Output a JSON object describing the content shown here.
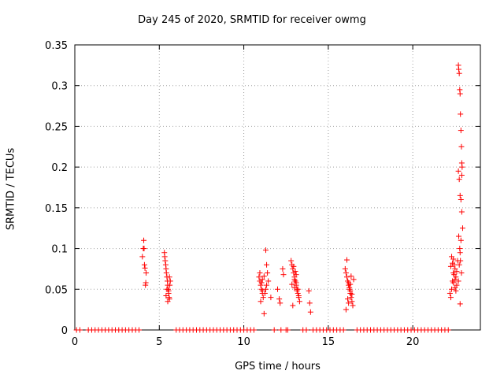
{
  "chart_data": {
    "type": "scatter",
    "title": "Day 245 of 2020, SRMTID for receiver owmg",
    "xlabel": "GPS time / hours",
    "ylabel": "SRMTID / TECUs",
    "xlim": [
      0,
      24
    ],
    "ylim": [
      0,
      0.35
    ],
    "xticks": [
      0,
      5,
      10,
      15,
      20
    ],
    "yticks": [
      0,
      0.05,
      0.1,
      0.15,
      0.2,
      0.25,
      0.3,
      0.35
    ],
    "grid": true,
    "marker": "+",
    "color": "#ff0000",
    "series": [
      {
        "name": "SRMTID",
        "x": [
          0.1,
          0.3,
          0.8,
          1.0,
          1.2,
          1.4,
          1.6,
          1.8,
          2.0,
          2.2,
          2.4,
          2.6,
          2.8,
          3.0,
          3.2,
          3.4,
          3.6,
          3.8,
          4.0,
          4.05,
          4.08,
          4.1,
          4.12,
          4.15,
          4.18,
          4.2,
          4.22,
          5.3,
          5.32,
          5.35,
          5.38,
          5.4,
          5.42,
          5.45,
          5.48,
          5.5,
          5.52,
          5.55,
          5.58,
          5.6,
          5.62,
          5.65,
          5.5,
          5.45,
          5.4,
          5.55,
          5.6,
          6.0,
          6.2,
          6.4,
          6.6,
          6.8,
          7.0,
          7.2,
          7.4,
          7.6,
          7.8,
          8.0,
          8.2,
          8.4,
          8.6,
          8.8,
          9.0,
          9.2,
          9.4,
          9.6,
          9.8,
          10.0,
          10.2,
          10.4,
          10.6,
          10.9,
          10.95,
          11.0,
          11.05,
          11.1,
          11.15,
          11.0,
          10.95,
          11.05,
          11.1,
          11.2,
          11.25,
          11.3,
          11.35,
          11.4,
          11.45,
          11.3,
          11.1,
          11.2,
          11.35,
          11.6,
          11.8,
          12.0,
          12.1,
          12.15,
          12.2,
          12.3,
          12.35,
          12.5,
          12.6,
          12.8,
          12.85,
          12.9,
          12.95,
          13.0,
          13.05,
          13.1,
          13.15,
          13.2,
          13.25,
          13.3,
          12.9,
          13.0,
          13.1,
          13.2,
          12.95,
          13.05,
          13.15,
          13.25,
          12.85,
          13.1,
          13.0,
          13.5,
          13.7,
          13.85,
          13.9,
          13.95,
          14.1,
          14.3,
          14.5,
          14.7,
          14.9,
          15.1,
          15.3,
          15.5,
          15.7,
          15.9,
          16.0,
          16.05,
          16.1,
          16.15,
          16.2,
          16.25,
          16.3,
          16.35,
          16.4,
          16.45,
          16.5,
          16.1,
          16.2,
          16.3,
          16.15,
          16.25,
          16.35,
          16.05,
          16.4,
          16.2,
          16.3,
          16.7,
          16.9,
          17.1,
          17.3,
          17.5,
          17.7,
          17.9,
          18.1,
          18.3,
          18.5,
          18.7,
          18.9,
          19.1,
          19.3,
          19.5,
          19.7,
          19.9,
          20.1,
          20.3,
          20.5,
          20.7,
          20.9,
          21.1,
          21.3,
          21.5,
          21.7,
          21.9,
          22.1,
          22.2,
          22.25,
          22.3,
          22.35,
          22.4,
          22.45,
          22.5,
          22.55,
          22.6,
          22.65,
          22.3,
          22.4,
          22.5,
          22.6,
          22.35,
          22.45,
          22.55,
          22.25,
          22.5,
          22.4,
          22.7,
          22.72,
          22.75,
          22.78,
          22.8,
          22.82,
          22.85,
          22.88,
          22.9,
          22.92,
          22.7,
          22.75,
          22.8,
          22.85,
          22.9,
          22.95,
          22.72,
          22.78,
          22.82,
          22.88,
          22.75,
          22.8,
          22.85,
          22.9,
          22.7,
          22.8
        ],
        "y": [
          0,
          0,
          0,
          0,
          0,
          0,
          0,
          0,
          0,
          0,
          0,
          0,
          0,
          0,
          0,
          0,
          0,
          0,
          0.09,
          0.1,
          0.11,
          0.1,
          0.08,
          0.076,
          0.055,
          0.058,
          0.07,
          0.095,
          0.09,
          0.085,
          0.08,
          0.075,
          0.07,
          0.065,
          0.06,
          0.055,
          0.05,
          0.045,
          0.04,
          0.065,
          0.055,
          0.06,
          0.035,
          0.05,
          0.042,
          0.048,
          0.038,
          0,
          0,
          0,
          0,
          0,
          0,
          0,
          0,
          0,
          0,
          0,
          0,
          0,
          0,
          0,
          0,
          0,
          0,
          0,
          0,
          0,
          0,
          0,
          0,
          0.065,
          0.06,
          0.055,
          0.05,
          0.045,
          0.04,
          0.035,
          0.07,
          0.058,
          0.062,
          0.02,
          0.045,
          0.098,
          0.08,
          0.07,
          0.06,
          0.05,
          0.048,
          0.066,
          0.055,
          0.04,
          0,
          0.05,
          0.038,
          0.033,
          0,
          0.075,
          0.068,
          0,
          0,
          0.085,
          0.08,
          0.075,
          0.07,
          0.065,
          0.06,
          0.055,
          0.05,
          0.045,
          0.04,
          0.035,
          0.03,
          0.062,
          0.058,
          0.05,
          0.078,
          0.072,
          0.048,
          0.042,
          0.056,
          0.068,
          0.052,
          0,
          0,
          0.048,
          0.033,
          0.022,
          0,
          0,
          0,
          0,
          0,
          0,
          0,
          0,
          0,
          0,
          0.075,
          0.07,
          0.065,
          0.06,
          0.055,
          0.05,
          0.045,
          0.04,
          0.035,
          0.03,
          0.062,
          0.086,
          0.058,
          0.048,
          0.038,
          0.052,
          0.066,
          0.025,
          0.044,
          0.033,
          0.056,
          0,
          0,
          0,
          0,
          0,
          0,
          0,
          0,
          0,
          0,
          0,
          0,
          0,
          0,
          0,
          0,
          0,
          0,
          0,
          0,
          0,
          0,
          0,
          0,
          0,
          0,
          0,
          0,
          0.045,
          0.04,
          0.05,
          0.06,
          0.07,
          0.08,
          0.075,
          0.065,
          0.055,
          0.085,
          0.09,
          0.058,
          0.062,
          0.072,
          0.082,
          0.068,
          0.048,
          0.078,
          0.052,
          0.087,
          0.325,
          0.32,
          0.315,
          0.295,
          0.29,
          0.265,
          0.245,
          0.225,
          0.205,
          0.2,
          0.195,
          0.185,
          0.165,
          0.16,
          0.145,
          0.125,
          0.115,
          0.1,
          0.085,
          0.07,
          0.08,
          0.095,
          0.11,
          0.19,
          0.06,
          0.032
        ]
      }
    ]
  }
}
